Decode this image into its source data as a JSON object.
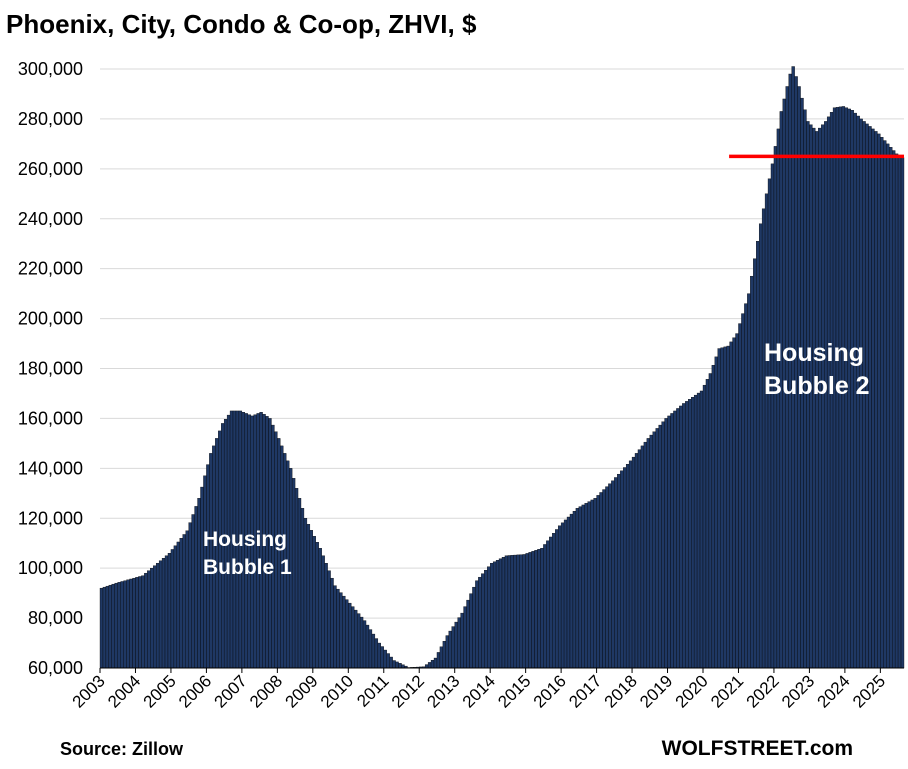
{
  "chart_data": {
    "type": "bar",
    "title": "Phoenix, City, Condo & Co-op, ZHVI, $",
    "xlabel": "",
    "ylabel": "",
    "ylim": [
      60000,
      300000
    ],
    "y_ticks": [
      "60,000",
      "80,000",
      "100,000",
      "120,000",
      "140,000",
      "160,000",
      "180,000",
      "200,000",
      "220,000",
      "240,000",
      "260,000",
      "280,000",
      "300,000"
    ],
    "x_ticks": [
      "2003",
      "2004",
      "2005",
      "2006",
      "2007",
      "2008",
      "2009",
      "2010",
      "2011",
      "2012",
      "2013",
      "2014",
      "2015",
      "2016",
      "2017",
      "2018",
      "2019",
      "2020",
      "2021",
      "2022",
      "2023",
      "2024",
      "2025"
    ],
    "frequency": "monthly",
    "start": "2003-01",
    "end": "2025-08",
    "bar_color": "#1f3864",
    "grid": true,
    "legend": "none",
    "anchors": [
      [
        "2003-01",
        92000
      ],
      [
        "2003-06",
        94000
      ],
      [
        "2003-12",
        96000
      ],
      [
        "2004-03",
        97000
      ],
      [
        "2004-06",
        100000
      ],
      [
        "2004-12",
        106000
      ],
      [
        "2005-06",
        115000
      ],
      [
        "2005-10",
        128000
      ],
      [
        "2006-02",
        146000
      ],
      [
        "2006-06",
        158000
      ],
      [
        "2006-09",
        163000
      ],
      [
        "2006-12",
        163000
      ],
      [
        "2007-04",
        161000
      ],
      [
        "2007-07",
        162500
      ],
      [
        "2007-10",
        160000
      ],
      [
        "2008-01",
        152000
      ],
      [
        "2008-05",
        140000
      ],
      [
        "2008-10",
        120000
      ],
      [
        "2009-03",
        108000
      ],
      [
        "2009-08",
        93000
      ],
      [
        "2010-01",
        86000
      ],
      [
        "2010-06",
        79000
      ],
      [
        "2010-11",
        70000
      ],
      [
        "2011-04",
        63000
      ],
      [
        "2011-09",
        60200
      ],
      [
        "2012-02",
        60500
      ],
      [
        "2012-06",
        64000
      ],
      [
        "2012-10",
        73000
      ],
      [
        "2013-03",
        82000
      ],
      [
        "2013-08",
        95000
      ],
      [
        "2014-01",
        102000
      ],
      [
        "2014-06",
        105000
      ],
      [
        "2014-12",
        105500
      ],
      [
        "2015-06",
        108000
      ],
      [
        "2015-12",
        117000
      ],
      [
        "2016-06",
        124000
      ],
      [
        "2016-12",
        128000
      ],
      [
        "2017-06",
        135000
      ],
      [
        "2017-12",
        143000
      ],
      [
        "2018-06",
        152000
      ],
      [
        "2018-12",
        160000
      ],
      [
        "2019-06",
        166000
      ],
      [
        "2019-12",
        171000
      ],
      [
        "2020-03",
        178000
      ],
      [
        "2020-06",
        188000
      ],
      [
        "2020-09",
        189000
      ],
      [
        "2020-12",
        194000
      ],
      [
        "2021-04",
        210000
      ],
      [
        "2021-08",
        238000
      ],
      [
        "2021-12",
        262000
      ],
      [
        "2022-03",
        283000
      ],
      [
        "2022-06",
        298000
      ],
      [
        "2022-07",
        301000
      ],
      [
        "2022-09",
        293000
      ],
      [
        "2022-12",
        279000
      ],
      [
        "2023-03",
        275000
      ],
      [
        "2023-06",
        279000
      ],
      [
        "2023-09",
        284500
      ],
      [
        "2023-12",
        285000
      ],
      [
        "2024-03",
        283500
      ],
      [
        "2024-06",
        280000
      ],
      [
        "2024-09",
        277000
      ],
      [
        "2024-12",
        274000
      ],
      [
        "2025-03",
        270000
      ],
      [
        "2025-06",
        266000
      ],
      [
        "2025-08",
        264500
      ]
    ],
    "reference_line": {
      "value": 265000,
      "color": "#ff0000",
      "from": "2020-10"
    },
    "annotations": [
      {
        "lines": [
          "Housing",
          "Bubble 1"
        ],
        "color": "#ffffff"
      },
      {
        "lines": [
          "Housing",
          "Bubble 2"
        ],
        "color": "#ffffff"
      }
    ]
  },
  "footer": {
    "source": "Source: Zillow",
    "brand": "WOLFSTREET.com"
  }
}
